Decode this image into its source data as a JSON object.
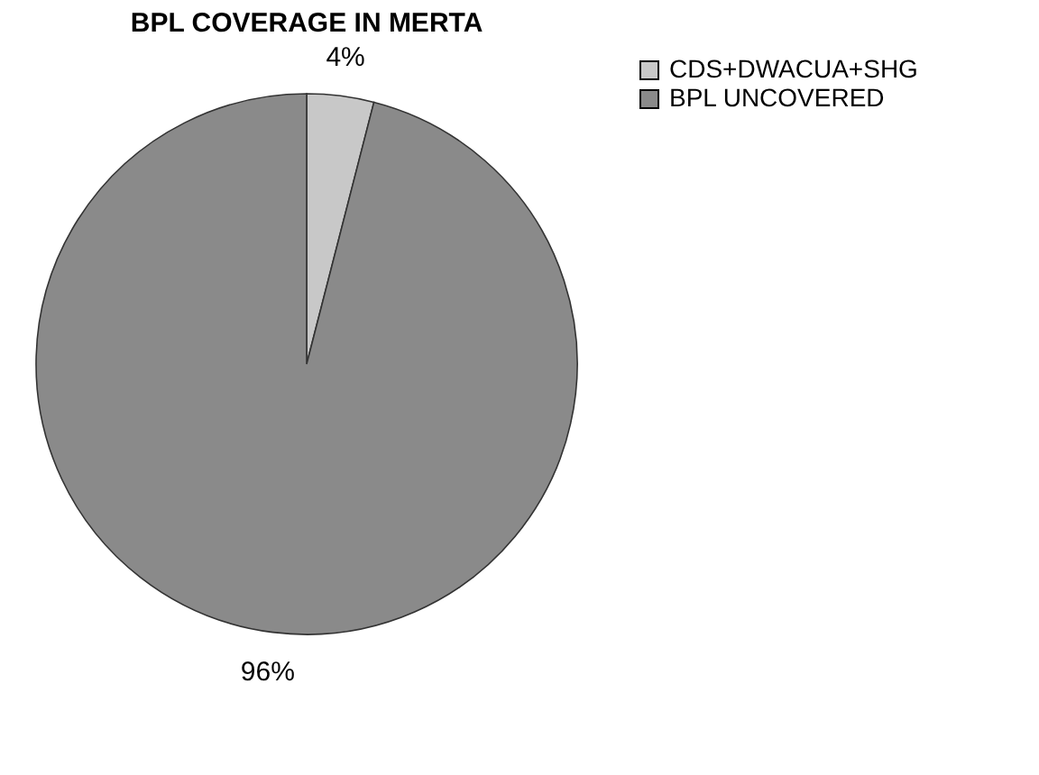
{
  "chart_data": {
    "type": "pie",
    "title": "BPL COVERAGE IN MERTA",
    "categories": [
      "CDS+DWACUA+SHG",
      "BPL UNCOVERED"
    ],
    "values": [
      4,
      96
    ],
    "colors": [
      "#c8c8c8",
      "#8a8a8a"
    ],
    "value_labels": [
      "4%",
      "96%"
    ],
    "legend": "right"
  }
}
